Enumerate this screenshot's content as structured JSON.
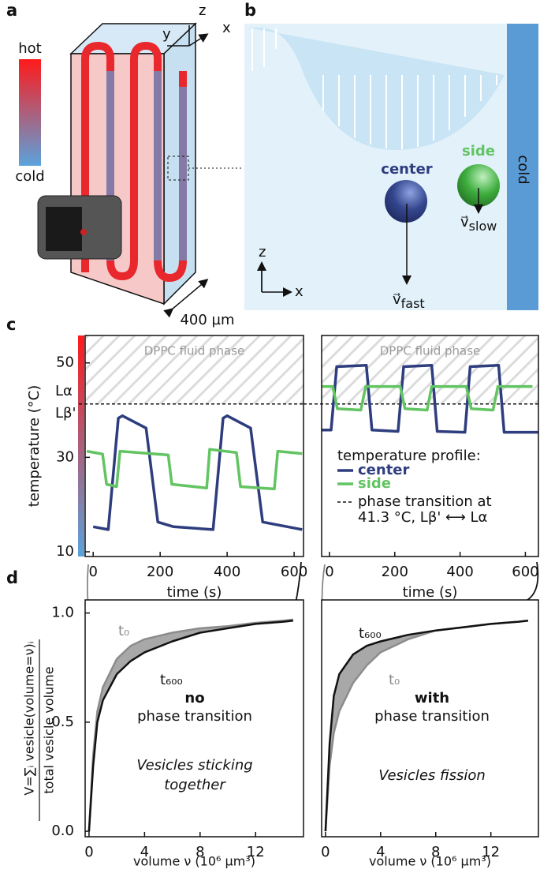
{
  "panel_labels": [
    "a",
    "b",
    "c",
    "d"
  ],
  "panel_a": {
    "hot": "hot",
    "cold": "cold",
    "z": "z",
    "y": "y",
    "x": "x",
    "scale": "400 µm"
  },
  "panel_b": {
    "center": "center",
    "side": "side",
    "wall": "cold",
    "vector": "v⃗",
    "fast": "fast",
    "slow": "slow",
    "z": "z",
    "x": "x"
  },
  "chart_data": [
    {
      "type": "line",
      "xlabel": "time (s)",
      "ylabel": "temperature (°C)",
      "xlim": [
        -24,
        628
      ],
      "ylim": [
        9,
        55.8
      ],
      "xticks": [
        0,
        200,
        400,
        600
      ],
      "yticks": [
        10,
        30,
        50
      ],
      "region_label": "DPPC fluid phase",
      "transition": 41.3,
      "transition_labels": [
        "Lα",
        "Lβ'"
      ],
      "series": [
        {
          "color": "#2e3d7e",
          "x": [
            0,
            45,
            75,
            87,
            158,
            193,
            240,
            358,
            388,
            400,
            470,
            506,
            624
          ],
          "values": [
            15.3,
            14.7,
            38.3,
            38.8,
            36.2,
            16.3,
            15.3,
            14.7,
            38.3,
            38.8,
            36.2,
            16.3,
            14.7
          ]
        },
        {
          "color": "#62c462",
          "x": [
            -19,
            28,
            40,
            70,
            80,
            224,
            235,
            339,
            348,
            428,
            440,
            541,
            551,
            624
          ],
          "values": [
            31.3,
            30.7,
            24.3,
            23.8,
            31.3,
            30.5,
            24.3,
            23.5,
            31.7,
            31,
            23.8,
            23.3,
            31.3,
            30.8
          ]
        }
      ]
    },
    {
      "type": "line",
      "xlabel": "time (s)",
      "xlim": [
        -24,
        640
      ],
      "ylim": [
        9,
        55.8
      ],
      "xticks": [
        0,
        200,
        400,
        600
      ],
      "region_label": "DPPC fluid phase",
      "transition": 41.3,
      "legend_title": "temperature profile:",
      "transition_legend": [
        "phase transition at",
        "41.3 °C, Lβ' ⟷ Lα"
      ],
      "series": [
        {
          "name": "center",
          "color": "#2e3d7e",
          "x": [
            -24,
            5,
            22,
            113,
            130,
            210,
            227,
            313,
            330,
            415,
            431,
            518,
            535,
            639
          ],
          "values": [
            35.8,
            35.8,
            49.2,
            49.5,
            35.8,
            35.5,
            49.2,
            49.5,
            35.5,
            35.3,
            49.2,
            49.5,
            35.3,
            35.3
          ]
        },
        {
          "name": "side",
          "color": "#62c462",
          "x": [
            -24,
            10,
            24,
            96,
            111,
            217,
            231,
            299,
            313,
            419,
            434,
            501,
            516,
            622
          ],
          "values": [
            45,
            45,
            40.3,
            40,
            45,
            45,
            40.3,
            40,
            45,
            45,
            40.3,
            40,
            45,
            45
          ]
        }
      ]
    },
    {
      "type": "line",
      "xlabel": "volume ν (10⁶ µm³)",
      "ylabel": [
        "V=∑ᵢ vesicle(volume=ν)ᵢ",
        "total vesicle volume"
      ],
      "xlim": [
        -0.28,
        15.45
      ],
      "ylim": [
        -0.025,
        1.06
      ],
      "xticks": [
        0,
        4,
        8,
        12
      ],
      "yticks": [
        {
          "value": 0,
          "label": "0.0"
        },
        {
          "value": 0.5,
          "label": "0.5"
        },
        {
          "value": 1,
          "label": "1.0"
        }
      ],
      "fill_between": true,
      "annotations": [
        "no",
        "phase transition",
        "Vesicles sticking",
        "together"
      ],
      "x": [
        0,
        0.3,
        0.6,
        1,
        2,
        3,
        4,
        6,
        8,
        10,
        12,
        14,
        14.7
      ],
      "series": [
        {
          "name": "t₀",
          "color": "#8c8c8c",
          "values": [
            0,
            0.35,
            0.55,
            0.66,
            0.79,
            0.85,
            0.88,
            0.91,
            0.93,
            0.94,
            0.955,
            0.965,
            0.97
          ]
        },
        {
          "name": "t₆₀₀",
          "color": "#111111",
          "values": [
            0,
            0.3,
            0.5,
            0.6,
            0.72,
            0.78,
            0.82,
            0.87,
            0.91,
            0.93,
            0.95,
            0.96,
            0.965
          ]
        }
      ]
    },
    {
      "type": "line",
      "xlabel": "volume ν (10⁶ µm³)",
      "xlim": [
        -0.28,
        15.45
      ],
      "ylim": [
        -0.025,
        1.06
      ],
      "xticks": [
        0,
        4,
        8,
        12
      ],
      "fill_between": true,
      "annotations": [
        "with",
        "phase transition",
        "Vesicles fission"
      ],
      "x": [
        0,
        0.3,
        0.6,
        1,
        2,
        3,
        4,
        6,
        8,
        10,
        12,
        14,
        14.7
      ],
      "series": [
        {
          "name": "t₀",
          "color": "#8c8c8c",
          "values": [
            0,
            0.3,
            0.45,
            0.55,
            0.68,
            0.76,
            0.82,
            0.88,
            0.92,
            0.935,
            0.95,
            0.96,
            0.965
          ]
        },
        {
          "name": "t₆₀₀",
          "color": "#111111",
          "values": [
            0,
            0.4,
            0.62,
            0.72,
            0.81,
            0.85,
            0.87,
            0.9,
            0.92,
            0.935,
            0.95,
            0.96,
            0.965
          ]
        }
      ]
    }
  ]
}
